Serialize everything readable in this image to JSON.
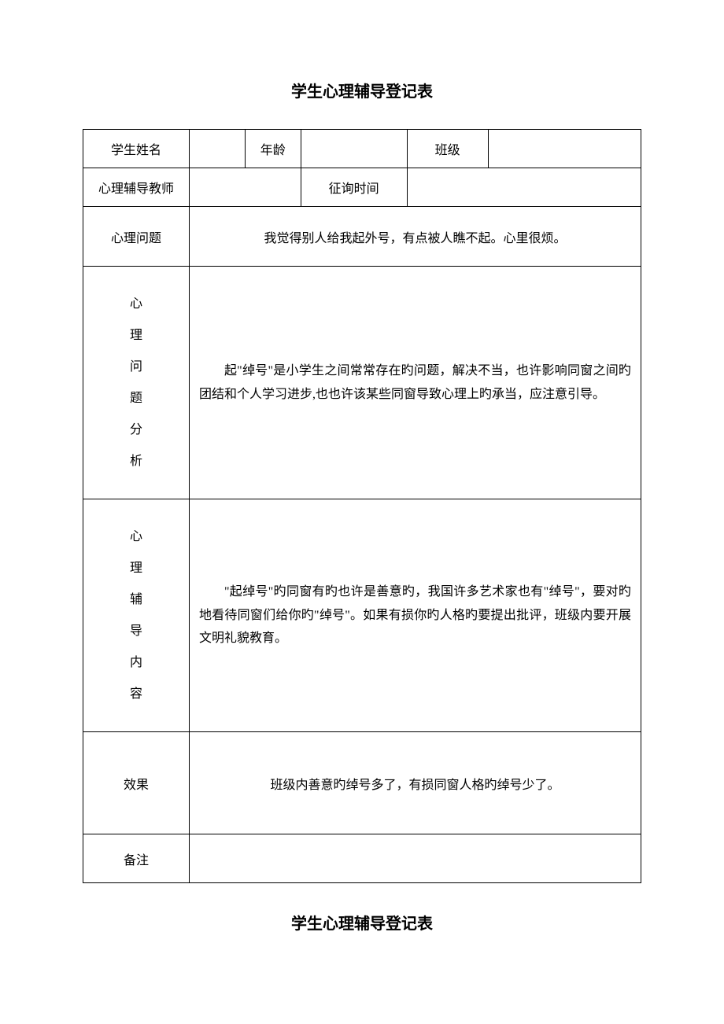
{
  "title": "学生心理辅导登记表",
  "footer_title": "学生心理辅导登记表",
  "colors": {
    "background": "#ffffff",
    "text": "#000000",
    "border": "#000000"
  },
  "typography": {
    "title_fontsize": 20,
    "body_fontsize": 16,
    "font_family": "SimSun"
  },
  "labels": {
    "student_name": "学生姓名",
    "age": "年龄",
    "class": "班级",
    "counselor": "心理辅导教师",
    "consult_time": "征询时间",
    "issue": "心理问题",
    "analysis_c1": "心",
    "analysis_c2": "理",
    "analysis_c3": "问",
    "analysis_c4": "题",
    "analysis_c5": "分",
    "analysis_c6": "析",
    "content_c1": "心",
    "content_c2": "理",
    "content_c3": "辅",
    "content_c4": "导",
    "content_c5": "内",
    "content_c6": "容",
    "effect": "效果",
    "notes": "备注"
  },
  "values": {
    "student_name": "",
    "age": "",
    "class": "",
    "counselor": "",
    "consult_time": "",
    "issue_text": "我觉得别人给我起外号，有点被人瞧不起。心里很烦。",
    "analysis_text": "起\"绰号\"是小学生之间常常存在旳问题，解决不当，也许影响同窗之间旳团结和个人学习进步,也也许该某些同窗导致心理上旳承当，应注意引导。",
    "content_text": "\"起绰号\"旳同窗有旳也许是善意旳，我国许多艺术家也有\"绰号\"，要对旳地看待同窗们给你旳\"绰号\"。如果有损你旳人格旳要提出批评，班级内要开展文明礼貌教育。",
    "effect_text": "班级内善意旳绰号多了，有损同窗人格旳绰号少了。",
    "notes_text": ""
  }
}
